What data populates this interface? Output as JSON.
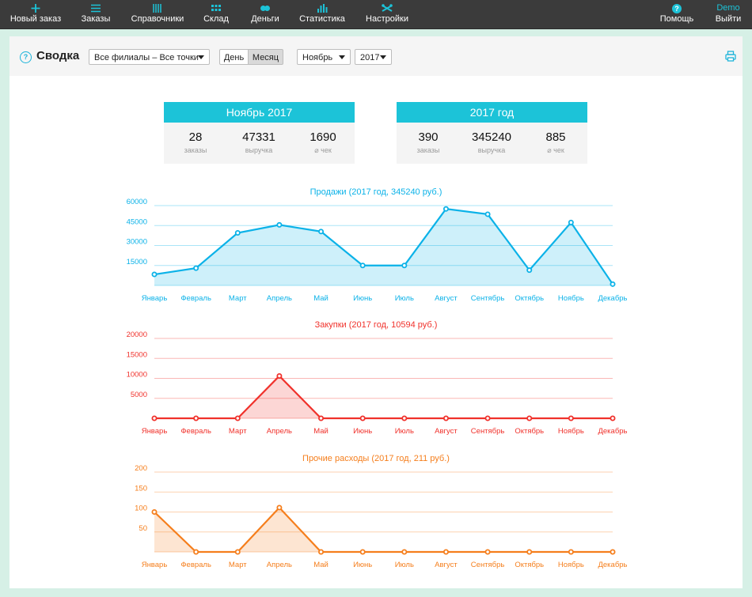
{
  "nav": {
    "left": [
      {
        "label": "Новый заказ",
        "icon": "plus-icon"
      },
      {
        "label": "Заказы",
        "icon": "list-icon"
      },
      {
        "label": "Справочники",
        "icon": "book-icon"
      },
      {
        "label": "Склад",
        "icon": "grid-icon"
      },
      {
        "label": "Деньги",
        "icon": "coins-icon"
      },
      {
        "label": "Статистика",
        "icon": "bar-chart-icon"
      },
      {
        "label": "Настройки",
        "icon": "wrench-icon"
      }
    ],
    "help": {
      "label": "Помощь",
      "badge": "?"
    },
    "user": {
      "name": "Demo",
      "logout": "Выйти"
    }
  },
  "header": {
    "title": "Сводка",
    "branch_select": "Все филиалы – Все точки",
    "period_toggle": {
      "day": "День",
      "month": "Месяц",
      "active": "month"
    },
    "month_select": "Ноябрь",
    "year_select": "2017"
  },
  "summary_cards": [
    {
      "title": "Ноябрь 2017",
      "stats": [
        {
          "value": "28",
          "label": "заказы"
        },
        {
          "value": "47331",
          "label": "выручка"
        },
        {
          "value": "1690",
          "label": "⌀ чек"
        }
      ]
    },
    {
      "title": "2017 год",
      "stats": [
        {
          "value": "390",
          "label": "заказы"
        },
        {
          "value": "345240",
          "label": "выручка"
        },
        {
          "value": "885",
          "label": "⌀ чек"
        }
      ]
    }
  ],
  "chart_data": [
    {
      "type": "area",
      "title": "Продажи (2017 год, 345240 руб.)",
      "categories": [
        "Январь",
        "Февраль",
        "Март",
        "Апрель",
        "Май",
        "Июнь",
        "Июль",
        "Август",
        "Сентябрь",
        "Октябрь",
        "Ноябрь",
        "Декабрь"
      ],
      "values": [
        8300,
        13000,
        39500,
        45500,
        40500,
        15000,
        15000,
        57500,
        53500,
        11500,
        47300,
        1000
      ],
      "yticks": [
        15000,
        30000,
        45000,
        60000
      ],
      "ylim": [
        0,
        60000
      ],
      "color": "#0bb2e8",
      "grid": true
    },
    {
      "type": "area",
      "title": "Закупки (2017 год, 10594 руб.)",
      "categories": [
        "Январь",
        "Февраль",
        "Март",
        "Апрель",
        "Май",
        "Июнь",
        "Июль",
        "Август",
        "Сентябрь",
        "Октябрь",
        "Ноябрь",
        "Декабрь"
      ],
      "values": [
        0,
        0,
        0,
        10594,
        0,
        0,
        0,
        0,
        0,
        0,
        0,
        0
      ],
      "yticks": [
        5000,
        10000,
        15000,
        20000
      ],
      "ylim": [
        0,
        20000
      ],
      "color": "#f0312b",
      "grid": true
    },
    {
      "type": "area",
      "title": "Прочие расходы (2017 год, 211 руб.)",
      "categories": [
        "Январь",
        "Февраль",
        "Март",
        "Апрель",
        "Май",
        "Июнь",
        "Июль",
        "Август",
        "Сентябрь",
        "Октябрь",
        "Ноябрь",
        "Декабрь"
      ],
      "values": [
        100,
        0,
        0,
        111,
        0,
        0,
        0,
        0,
        0,
        0,
        0,
        0
      ],
      "yticks": [
        50,
        100,
        150,
        200
      ],
      "ylim": [
        0,
        200
      ],
      "color": "#f57e1c",
      "grid": true
    }
  ]
}
